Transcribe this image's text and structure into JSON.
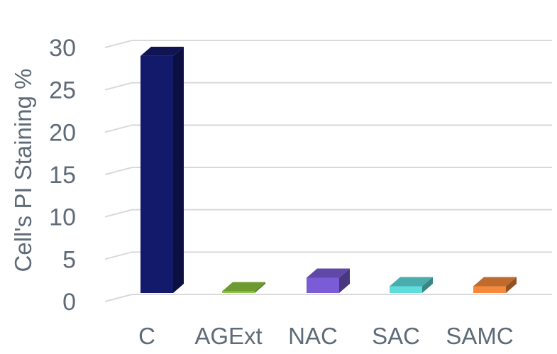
{
  "chart_data": {
    "type": "bar",
    "title": "",
    "xlabel": "",
    "ylabel": "Cell's PI Staining %",
    "ylim": [
      0,
      30
    ],
    "yticks": [
      0,
      5,
      10,
      15,
      20,
      25,
      30
    ],
    "grid": true,
    "style": "3d-perspective-columns",
    "categories": [
      "C",
      "AGExt",
      "NAC",
      "SAC",
      "SAMC"
    ],
    "values": [
      28,
      0.2,
      1.8,
      0.8,
      0.8
    ],
    "colors": [
      "#141a6b",
      "#8cc63f",
      "#7a5cd6",
      "#5fdddd",
      "#f5893b"
    ]
  }
}
